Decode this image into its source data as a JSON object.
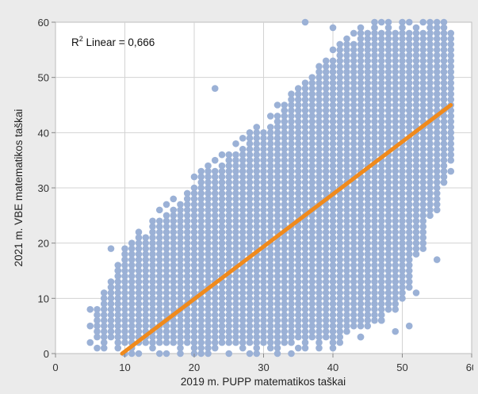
{
  "chart_data": {
    "type": "scatter",
    "title": "",
    "xlabel": "2019 m. PUPP matematikos taškai",
    "ylabel": "2021 m. VBE matematikos taškai",
    "xlim": [
      0,
      60
    ],
    "ylim": [
      0,
      60
    ],
    "x_ticks": [
      "0",
      "10",
      "20",
      "30",
      "40",
      "50",
      "60"
    ],
    "y_ticks": [
      "0",
      "10",
      "20",
      "30",
      "40",
      "50",
      "60"
    ],
    "grid": true,
    "annotation": {
      "prefix": "R",
      "superscript": "2",
      "text": " Linear = 0,666"
    },
    "colors": {
      "points": "#9bb1d6",
      "fit_line": "#f08a1c",
      "background": "#ebebeb",
      "plot_bg": "#ffffff",
      "grid": "#d3d3d3"
    },
    "fit_line": {
      "x": [
        9.6,
        57
      ],
      "y": [
        0,
        45
      ]
    },
    "point_band": {
      "description_free": true,
      "x_range": [
        4,
        57
      ],
      "lower": [
        [
          4,
          2
        ],
        [
          10,
          0
        ],
        [
          20,
          0
        ],
        [
          30,
          0
        ],
        [
          40,
          1
        ],
        [
          45,
          4
        ],
        [
          50,
          9
        ],
        [
          57,
          33
        ]
      ],
      "upper": [
        [
          4,
          2
        ],
        [
          10,
          19
        ],
        [
          20,
          32
        ],
        [
          30,
          42
        ],
        [
          40,
          55
        ],
        [
          45,
          60
        ],
        [
          57,
          60
        ]
      ]
    },
    "outliers": [
      {
        "x": 23,
        "y": 48
      },
      {
        "x": 14,
        "y": 10
      },
      {
        "x": 16,
        "y": 14
      },
      {
        "x": 36,
        "y": 60
      },
      {
        "x": 40,
        "y": 59
      },
      {
        "x": 44,
        "y": 3
      },
      {
        "x": 47,
        "y": 6
      },
      {
        "x": 51,
        "y": 5
      },
      {
        "x": 49,
        "y": 4
      },
      {
        "x": 53,
        "y": 20
      },
      {
        "x": 52,
        "y": 11
      },
      {
        "x": 55,
        "y": 17
      },
      {
        "x": 56,
        "y": 31
      },
      {
        "x": 45,
        "y": 7
      },
      {
        "x": 8,
        "y": 19
      },
      {
        "x": 5,
        "y": 8
      },
      {
        "x": 9,
        "y": 15
      },
      {
        "x": 12,
        "y": 21
      }
    ]
  }
}
